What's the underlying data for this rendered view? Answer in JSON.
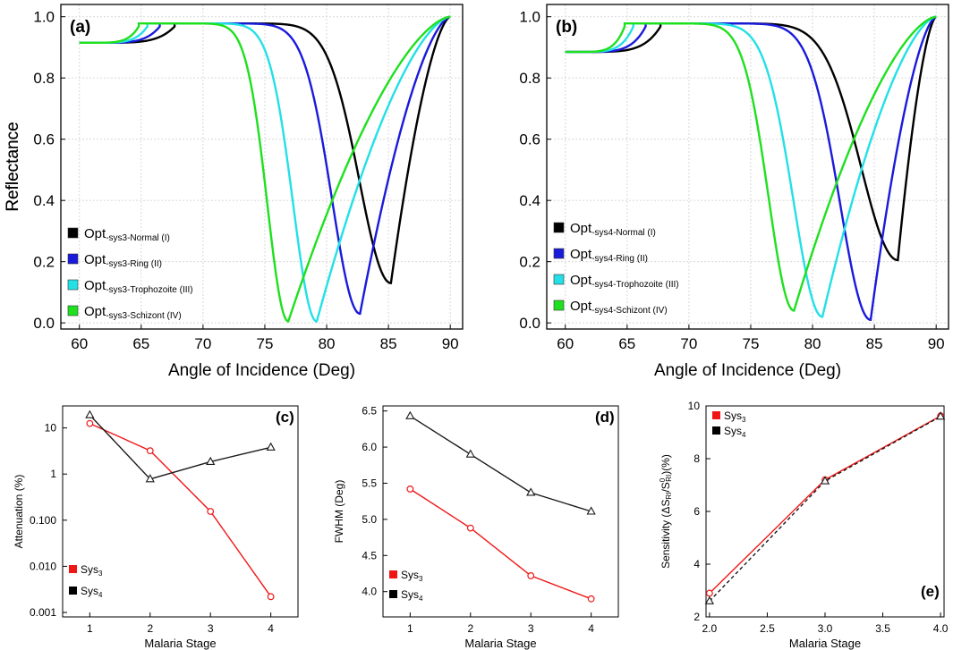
{
  "figure": {
    "label": "Five-panel SPR reflectance and performance figure for malaria stages"
  },
  "chart_data": [
    {
      "id": "a",
      "type": "line",
      "panel_label": "(a)",
      "xlabel": "Angle of Incidence (Deg)",
      "ylabel": "Reflectance",
      "xlim": [
        58.5,
        91
      ],
      "ylim": [
        -0.02,
        1.04
      ],
      "xticks": [
        "60",
        "65",
        "70",
        "75",
        "80",
        "85",
        "90"
      ],
      "yticks": [
        "0.0",
        "0.2",
        "0.4",
        "0.6",
        "0.8",
        "1.0"
      ],
      "curve_params": {
        "start": 0.915,
        "plateau": 0.978,
        "end": 1.0,
        "series_order": [
          "Normal",
          "Ring",
          "Trophozoite",
          "Schizont"
        ],
        "kink_x": [
          67.7,
          66.5,
          65.5,
          64.8
        ],
        "dip_x": [
          85.2,
          82.7,
          79.2,
          76.9
        ],
        "dip_min": [
          0.13,
          0.03,
          0.005,
          0.005
        ],
        "width_left": [
          3.6,
          3.2,
          2.7,
          2.4
        ],
        "width_right": [
          3.1,
          3.0,
          4.6,
          5.2
        ]
      },
      "legend": [
        {
          "prefix": "Opt",
          "sub": "-sys3-Normal",
          "suffix": " (I)",
          "color": "#000000"
        },
        {
          "prefix": "Opt",
          "sub": "-sys3-Ring",
          "suffix": " (II)",
          "color": "#1a1adb"
        },
        {
          "prefix": "Opt",
          "sub": "-sys3-Trophozoite",
          "suffix": " (III)",
          "color": "#22e0e6"
        },
        {
          "prefix": "Opt",
          "sub": "-sys3-Schizont",
          "suffix": " (IV)",
          "color": "#1ee01e"
        }
      ]
    },
    {
      "id": "b",
      "type": "line",
      "panel_label": "(b)",
      "xlabel": "Angle of Incidence (Deg)",
      "ylabel": "Reflectance",
      "xlim": [
        58.5,
        91
      ],
      "ylim": [
        -0.02,
        1.04
      ],
      "xticks": [
        "60",
        "65",
        "70",
        "75",
        "80",
        "85",
        "90"
      ],
      "yticks": [
        "0.0",
        "0.2",
        "0.4",
        "0.6",
        "0.8",
        "1.0"
      ],
      "curve_params": {
        "start": 0.885,
        "plateau": 0.978,
        "end": 1.0,
        "series_order": [
          "Normal",
          "Ring",
          "Trophozoite",
          "Schizont"
        ],
        "kink_x": [
          67.7,
          66.5,
          65.5,
          64.8
        ],
        "dip_x": [
          86.9,
          84.7,
          80.8,
          78.5
        ],
        "dip_min": [
          0.205,
          0.01,
          0.02,
          0.04
        ],
        "width_left": [
          4.2,
          3.5,
          3.3,
          2.9
        ],
        "width_right": [
          2.8,
          2.9,
          5.0,
          5.6
        ]
      },
      "legend": [
        {
          "prefix": "Opt",
          "sub": "-sys4-Normal",
          "suffix": " (I)",
          "color": "#000000"
        },
        {
          "prefix": "Opt",
          "sub": "-sys4-Ring",
          "suffix": " (II)",
          "color": "#1a1adb"
        },
        {
          "prefix": "Opt",
          "sub": "-sys4-Trophozoite",
          "suffix": " (III)",
          "color": "#22e0e6"
        },
        {
          "prefix": "Opt",
          "sub": "-sys4-Schizont",
          "suffix": " (IV)",
          "color": "#1ee01e"
        }
      ]
    },
    {
      "id": "c",
      "type": "line",
      "panel_label": "(c)",
      "xlabel": "Malaria Stage",
      "ylabel": "Attenuation (%)",
      "yscale": "log",
      "xlim": [
        0.55,
        4.45
      ],
      "ylim": [
        0.0008,
        30
      ],
      "xticks": [
        "1",
        "2",
        "3",
        "4"
      ],
      "yticks": [
        "0.001",
        "0.010",
        "0.100",
        "1",
        "10"
      ],
      "x": [
        1,
        2,
        3,
        4
      ],
      "series": [
        {
          "name": "Sys3",
          "label": "Sys",
          "sub": "3",
          "color": "#f01616",
          "marker": "circle",
          "dashed": false,
          "values": [
            12.5,
            3.2,
            0.155,
            0.0022
          ]
        },
        {
          "name": "Sys4",
          "label": "Sys",
          "sub": "4",
          "color": "#1a1a1a",
          "marker": "triangle",
          "dashed": false,
          "values": [
            19.0,
            0.78,
            1.85,
            3.8
          ]
        }
      ]
    },
    {
      "id": "d",
      "type": "line",
      "panel_label": "(d)",
      "xlabel": "Malaria Stage",
      "ylabel": "FWHM (Deg)",
      "xlim": [
        0.55,
        4.45
      ],
      "ylim": [
        3.65,
        6.57
      ],
      "xticks": [
        "1",
        "2",
        "3",
        "4"
      ],
      "yticks": [
        "4.0",
        "4.5",
        "5.0",
        "5.5",
        "6.0",
        "6.5"
      ],
      "x": [
        1,
        2,
        3,
        4
      ],
      "series": [
        {
          "name": "Sys3",
          "label": "Sys",
          "sub": "3",
          "color": "#f01616",
          "marker": "circle",
          "dashed": false,
          "values": [
            5.42,
            4.88,
            4.22,
            3.9
          ]
        },
        {
          "name": "Sys4",
          "label": "Sys",
          "sub": "4",
          "color": "#1a1a1a",
          "marker": "triangle",
          "dashed": false,
          "values": [
            6.43,
            5.9,
            5.37,
            5.11
          ]
        }
      ]
    },
    {
      "id": "e",
      "type": "line",
      "panel_label": "(e)",
      "xlabel": "Malaria Stage",
      "ylabel": "Sensitivity (ΔS",
      "ylabel_tail": ")(%)",
      "xlim": [
        1.97,
        4.03
      ],
      "ylim": [
        2,
        10
      ],
      "xticks": [
        "2.0",
        "2.5",
        "3.0",
        "3.5",
        "4.0"
      ],
      "yticks": [
        "2",
        "4",
        "6",
        "8",
        "10"
      ],
      "x": [
        2,
        3,
        4
      ],
      "series": [
        {
          "name": "Sys3",
          "label": "Sys",
          "sub": "3",
          "color": "#f01616",
          "marker": "circle",
          "dashed": false,
          "values": [
            2.9,
            7.2,
            9.62
          ]
        },
        {
          "name": "Sys4",
          "label": "Sys",
          "sub": "4",
          "color": "#1a1a1a",
          "marker": "triangle",
          "dashed": true,
          "values": [
            2.6,
            7.15,
            9.6
          ]
        }
      ]
    }
  ]
}
